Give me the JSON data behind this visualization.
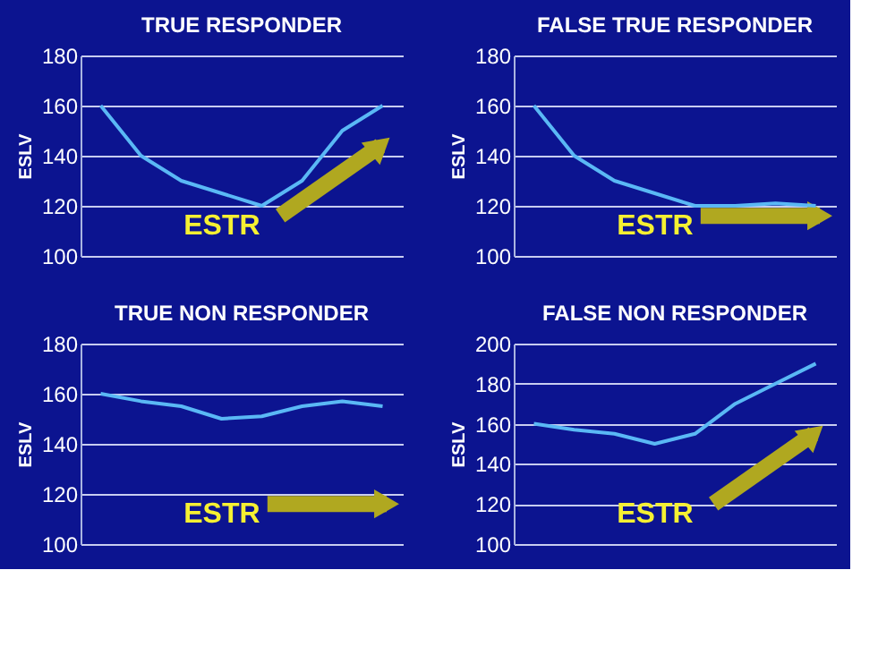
{
  "chart_data": [
    {
      "type": "line",
      "title": "TRUE RESPONDER",
      "ylabel": "ESLV",
      "categories": [
        null,
        null,
        null,
        null,
        null,
        null,
        null,
        null
      ],
      "ylim": [
        100,
        180
      ],
      "yticks": [
        100,
        120,
        140,
        160,
        180
      ],
      "grid": "y",
      "tick_labels": "y",
      "annotations": [
        "ESTR"
      ],
      "series": [
        {
          "color": "#5ab8f5",
          "values": [
            160,
            140,
            130,
            125,
            120,
            130,
            150,
            160
          ]
        }
      ]
    },
    {
      "type": "line",
      "title": "FALSE TRUE RESPONDER",
      "ylabel": "ESLV",
      "categories": [
        null,
        null,
        null,
        null,
        null,
        null,
        null,
        null
      ],
      "ylim": [
        100,
        180
      ],
      "yticks": [
        100,
        120,
        140,
        160,
        180
      ],
      "grid": "y",
      "tick_labels": "y",
      "annotations": [
        "ESTR"
      ],
      "series": [
        {
          "color": "#5ab8f5",
          "values": [
            160,
            140,
            130,
            125,
            120,
            120,
            121,
            120
          ]
        }
      ]
    },
    {
      "type": "line",
      "title": "TRUE NON  RESPONDER",
      "ylabel": "ESLV",
      "categories": [
        null,
        null,
        null,
        null,
        null,
        null,
        null,
        null
      ],
      "ylim": [
        100,
        180
      ],
      "yticks": [
        100,
        120,
        140,
        160,
        180
      ],
      "grid": "y",
      "tick_labels": "y",
      "annotations": [
        "ESTR"
      ],
      "series": [
        {
          "color": "#5ab8f5",
          "values": [
            160,
            157,
            155,
            150,
            151,
            155,
            157,
            155
          ]
        }
      ]
    },
    {
      "type": "line",
      "title": "FALSE NON  RESPONDER",
      "ylabel": "ESLV",
      "categories": [
        null,
        null,
        null,
        null,
        null,
        null,
        null,
        null
      ],
      "ylim": [
        100,
        200
      ],
      "yticks": [
        100,
        120,
        140,
        160,
        180,
        200
      ],
      "grid": "y",
      "tick_labels": "y",
      "annotations": [
        "ESTR"
      ],
      "series": [
        {
          "color": "#5ab8f5",
          "values": [
            160,
            157,
            155,
            150,
            155,
            170,
            180,
            190
          ]
        }
      ]
    }
  ]
}
